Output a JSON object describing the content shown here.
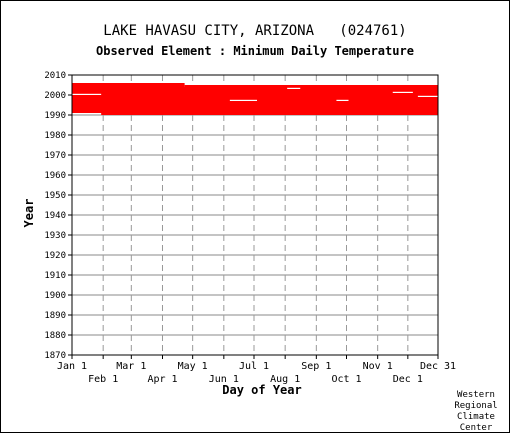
{
  "chart_data": {
    "type": "heatmap",
    "title": "LAKE HAVASU CITY, ARIZONA   (024761)",
    "subtitle": "Observed Element : Minimum Daily Temperature",
    "xlabel": "Day of Year",
    "ylabel": "Year",
    "x_ticks_upper": [
      "Jan 1",
      "Mar 1",
      "May 1",
      "Jul 1",
      "Sep 1",
      "Nov 1",
      "Dec 31"
    ],
    "x_ticks_lower": [
      "Feb 1",
      "Apr 1",
      "Jun 1",
      "Aug 1",
      "Oct 1",
      "Dec 1"
    ],
    "x_tick_days": [
      1,
      32,
      60,
      91,
      121,
      152,
      182,
      213,
      244,
      274,
      305,
      335,
      365
    ],
    "y_ticks": [
      2010,
      2000,
      1990,
      1980,
      1970,
      1960,
      1950,
      1940,
      1930,
      1920,
      1910,
      1900,
      1890,
      1880,
      1870
    ],
    "ylim": [
      1870,
      2010
    ],
    "xlim": [
      1,
      365
    ],
    "grid": true,
    "data_color": "#ff0000",
    "observed_periods": [
      {
        "start_year": 1990,
        "end_year": 1991,
        "start_day": 30,
        "end_day": 365
      },
      {
        "start_year": 1991,
        "end_year": 2000,
        "start_day": 1,
        "end_day": 365
      },
      {
        "start_year": 2000,
        "end_year": 2004,
        "start_day": 1,
        "end_day": 365
      },
      {
        "start_year": 2004,
        "end_year": 2006,
        "start_day": 1,
        "end_day": 113
      },
      {
        "start_year": 2004,
        "end_year": 2005,
        "start_day": 113,
        "end_day": 365
      }
    ],
    "gaps": [
      {
        "year": 2000,
        "start_day": 1,
        "end_day": 30
      },
      {
        "year": 1997,
        "start_day": 158,
        "end_day": 185
      },
      {
        "year": 2003,
        "start_day": 215,
        "end_day": 228
      },
      {
        "year": 1997,
        "start_day": 264,
        "end_day": 276
      },
      {
        "year": 2001,
        "start_day": 320,
        "end_day": 340
      },
      {
        "year": 1999,
        "start_day": 345,
        "end_day": 365
      }
    ]
  },
  "credit": [
    "Western",
    "Regional",
    "Climate",
    "Center"
  ]
}
